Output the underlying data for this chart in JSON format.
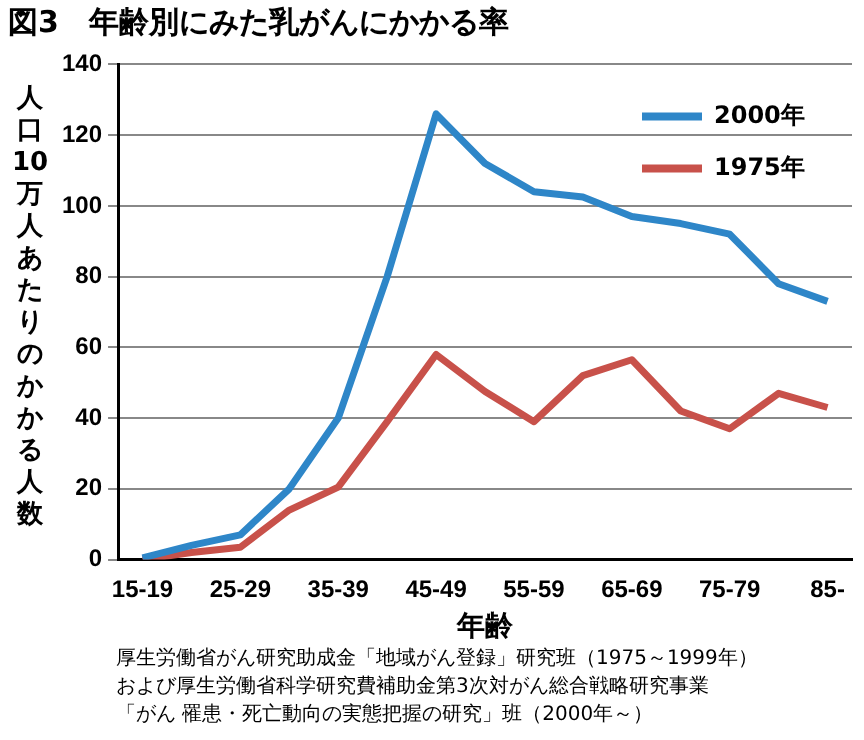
{
  "chart_data": {
    "type": "line",
    "title": "図3　年齢別にみた乳がんにかかる率",
    "xlabel": "年齢",
    "ylabel": "人口10万人あたりのかかる人数",
    "categories": [
      "15-19",
      null,
      "25-29",
      null,
      "35-39",
      null,
      "45-49",
      null,
      "55-59",
      null,
      "65-69",
      null,
      "75-79",
      null,
      "85-"
    ],
    "series": [
      {
        "name": "2000年",
        "color": "#2e86c8",
        "values": [
          0.5,
          4,
          7,
          20,
          40,
          80,
          126,
          112,
          104,
          102.5,
          97,
          95,
          92,
          78,
          73
        ]
      },
      {
        "name": "1975年",
        "color": "#c8514a",
        "values": [
          0,
          2,
          3.5,
          14,
          20.5,
          39,
          58,
          47.5,
          39,
          52,
          56.5,
          42,
          37,
          47,
          43
        ]
      }
    ],
    "ylim": [
      0,
      140
    ],
    "yticks": [
      0,
      20,
      40,
      60,
      80,
      100,
      120,
      140
    ],
    "grid": "y",
    "legend": "top right",
    "marker": "none",
    "line_style": "solid",
    "annotations": [
      "厚生労働省がん研究助成金「地域がん登録」研究班（1975～1999年）",
      "および厚生労働省科学研究費補助金第3次対がん総合戦略研究事業",
      "「がん 罹患・死亡動向の実態把握の研究」班（2000年～）"
    ]
  }
}
